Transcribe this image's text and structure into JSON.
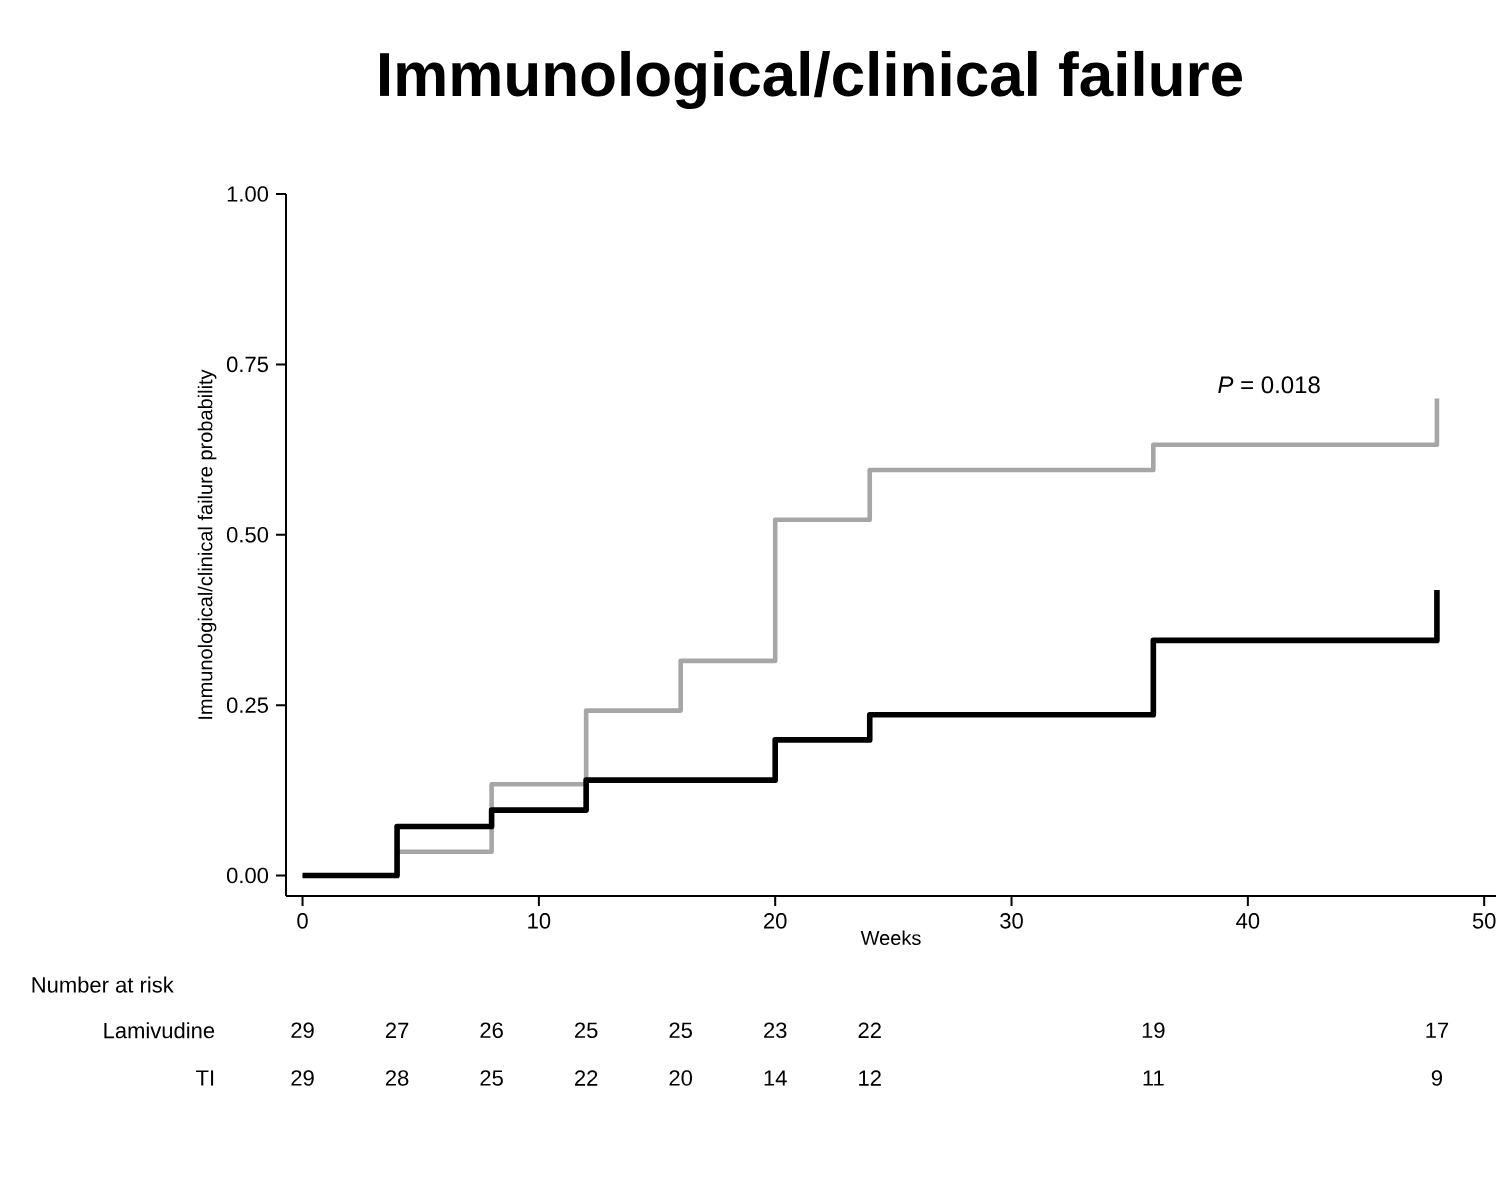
{
  "chart_data": {
    "type": "step",
    "title": "Immunological/clinical failure",
    "xlabel": "Weeks",
    "ylabel": "Immunological/clinical failure probability",
    "xlim": [
      -0.7,
      50.5
    ],
    "ylim": [
      -0.03,
      1.0
    ],
    "xticks": [
      0,
      10,
      20,
      30,
      40,
      50
    ],
    "yticks": [
      {
        "value": 0,
        "label": "0.00"
      },
      {
        "value": 0.25,
        "label": "0.25"
      },
      {
        "value": 0.5,
        "label": "0.50"
      },
      {
        "value": 0.75,
        "label": "0.75"
      },
      {
        "value": 1,
        "label": "1.00"
      }
    ],
    "grid": false,
    "marker": "none",
    "line_style": "solid",
    "series": [
      {
        "color": "#000000",
        "x": [
          0,
          4,
          8,
          12,
          20,
          24,
          36,
          48
        ],
        "values": [
          0,
          0.072,
          0.096,
          0.14,
          0.199,
          0.236,
          0.345,
          0.419
        ]
      },
      {
        "color": "#a6a6a6",
        "x": [
          0,
          4,
          8,
          12,
          16,
          20,
          24,
          36,
          48
        ],
        "values": [
          0,
          0.035,
          0.134,
          0.242,
          0.315,
          0.522,
          0.595,
          0.632,
          0.7
        ]
      }
    ],
    "annotations": [
      "*P* = 0.018",
      "Number at risk",
      "Lamivudine",
      "29",
      "27",
      "26",
      "25",
      "25",
      "23",
      "22",
      "19",
      "17",
      "TI",
      "29",
      "28",
      "25",
      "22",
      "20",
      "14",
      "12",
      "11",
      "9"
    ]
  }
}
